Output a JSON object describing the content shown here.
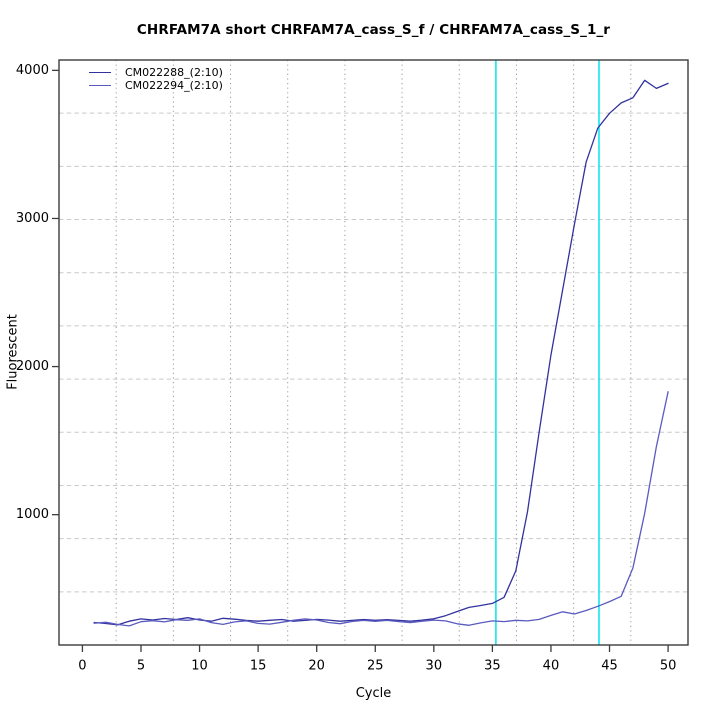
{
  "chart_data": {
    "type": "line",
    "title": "CHRFAM7A short CHRFAM7A_cass_S_f / CHRFAM7A_cass_S_1_r",
    "xlabel": "Cycle",
    "ylabel": "Fluorescent",
    "x_ticks": [
      0,
      5,
      10,
      15,
      20,
      25,
      30,
      35,
      40,
      45,
      50
    ],
    "y_ticks": [
      1000,
      2000,
      3000,
      4000
    ],
    "xlim": [
      -2.0,
      51.7
    ],
    "ylim": [
      120,
      4070
    ],
    "grid": {
      "on": true,
      "divisions_x": 11,
      "divisions_y": 11,
      "h_line_color": "#c9c9c9",
      "v_line_color": "#9a9a9a"
    },
    "threshold_lines": {
      "x_values": [
        35.3,
        44.1
      ],
      "color": "#00e5f0"
    },
    "legend_position": "top-left",
    "x": [
      1,
      2,
      3,
      4,
      5,
      6,
      7,
      8,
      9,
      10,
      11,
      12,
      13,
      14,
      15,
      16,
      17,
      18,
      19,
      20,
      21,
      22,
      23,
      24,
      25,
      26,
      27,
      28,
      29,
      30,
      31,
      32,
      33,
      34,
      35,
      36,
      37,
      38,
      39,
      40,
      41,
      42,
      43,
      44,
      45,
      46,
      47,
      48,
      49,
      50
    ],
    "series": [
      {
        "name": "CM022288_(2:10)",
        "color": "#32329e",
        "values": [
          272,
          265,
          256,
          281,
          296,
          289,
          299,
          292,
          304,
          289,
          281,
          300,
          294,
          286,
          281,
          287,
          292,
          281,
          286,
          293,
          288,
          281,
          286,
          292,
          287,
          291,
          286,
          281,
          288,
          297,
          318,
          346,
          374,
          387,
          401,
          442,
          620,
          1020,
          1560,
          2080,
          2520,
          2960,
          3380,
          3610,
          3710,
          3780,
          3815,
          3933,
          3878,
          3912
        ]
      },
      {
        "name": "CM022294_(2:10)",
        "color": "#5a5ac0",
        "values": [
          267,
          273,
          259,
          249,
          277,
          284,
          276,
          291,
          287,
          296,
          271,
          259,
          276,
          283,
          266,
          261,
          273,
          287,
          296,
          289,
          272,
          264,
          279,
          286,
          280,
          286,
          278,
          271,
          281,
          288,
          283,
          263,
          253,
          269,
          283,
          278,
          287,
          283,
          293,
          320,
          344,
          329,
          353,
          381,
          413,
          449,
          640,
          1010,
          1460,
          1830
        ]
      }
    ],
    "axis_color": "#3c3c3c",
    "tick_label_color": "#000000"
  }
}
